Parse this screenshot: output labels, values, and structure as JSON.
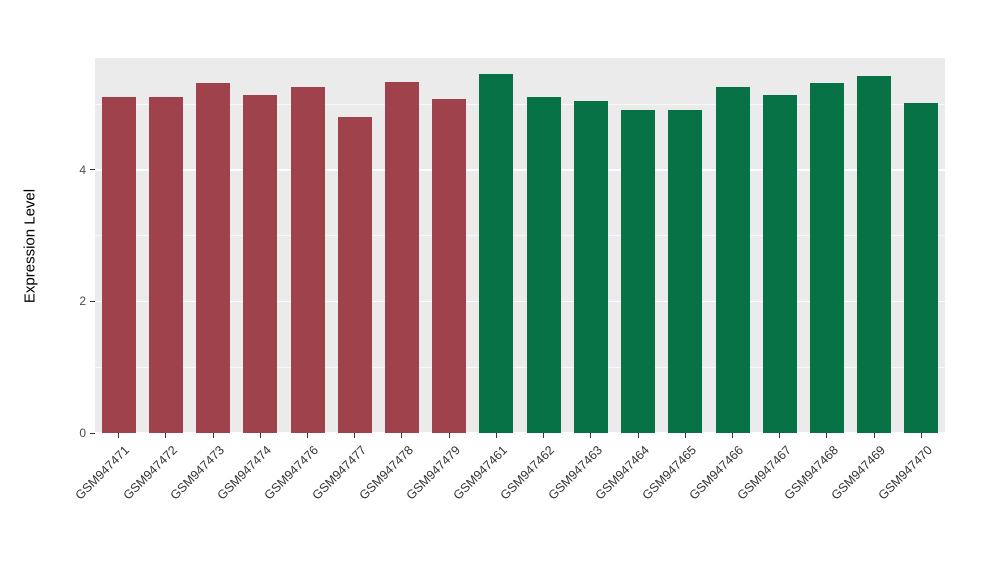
{
  "chart_data": {
    "type": "bar",
    "title": "",
    "xlabel": "",
    "ylabel": "Expression Level",
    "ylim": [
      0,
      5.7
    ],
    "yticks": [
      0,
      2,
      4
    ],
    "yminor": [
      1,
      3,
      5
    ],
    "grid": "white major and minor horizontal gridlines on gray panel",
    "legend": "none",
    "panel_background": "#EBEBEB",
    "categories": [
      "GSM947471",
      "GSM947472",
      "GSM947473",
      "GSM947474",
      "GSM947476",
      "GSM947477",
      "GSM947478",
      "GSM947479",
      "GSM947461",
      "GSM947462",
      "GSM947463",
      "GSM947464",
      "GSM947465",
      "GSM947466",
      "GSM947467",
      "GSM947468",
      "GSM947469",
      "GSM947470"
    ],
    "values": [
      5.11,
      5.11,
      5.32,
      5.14,
      5.26,
      4.81,
      5.34,
      5.08,
      5.46,
      5.1,
      5.05,
      4.91,
      4.91,
      5.26,
      5.14,
      5.32,
      5.43,
      5.02
    ],
    "bar_groups": [
      "maroon",
      "maroon",
      "maroon",
      "maroon",
      "maroon",
      "maroon",
      "maroon",
      "maroon",
      "green",
      "green",
      "green",
      "green",
      "green",
      "green",
      "green",
      "green",
      "green",
      "green"
    ],
    "group_colors": {
      "maroon": "#A0424C",
      "green": "#067245"
    }
  }
}
